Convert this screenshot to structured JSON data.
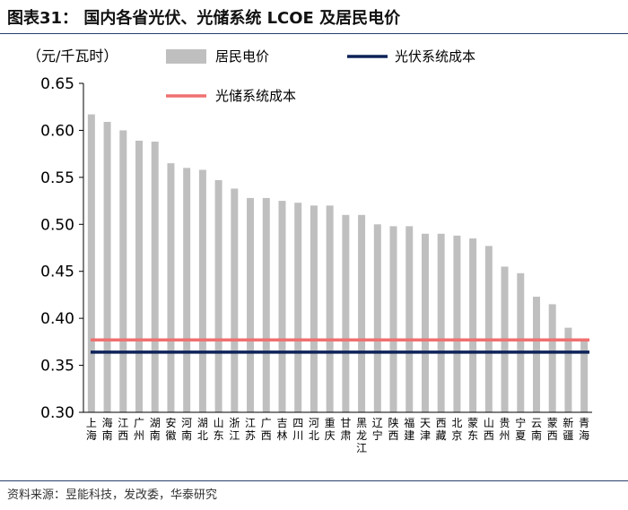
{
  "title": "图表31： 国内各省光伏、光储系统 LCOE 及居民电价",
  "source": "资料来源：昱能科技，发改委，华泰研究",
  "colors": {
    "bar": "#bfbfbf",
    "pv_line": "#0d2358",
    "storage_line": "#f07070",
    "axis": "#000000"
  },
  "chart_data": {
    "type": "bar",
    "unit_label": "（元/千瓦时）",
    "ylim": [
      0.3,
      0.65
    ],
    "yticks": [
      "0.30",
      "0.35",
      "0.40",
      "0.45",
      "0.50",
      "0.55",
      "0.60",
      "0.65"
    ],
    "categories": [
      "上海",
      "海南",
      "江西",
      "广州",
      "湖南",
      "安徽",
      "河南",
      "湖北",
      "山东",
      "浙江",
      "江苏",
      "广西",
      "吉林",
      "四川",
      "河北",
      "重庆",
      "甘肃",
      "黑龙江",
      "辽宁",
      "陕西",
      "福建",
      "天津",
      "西藏",
      "北京",
      "蒙东",
      "山西",
      "贵州",
      "宁夏",
      "云南",
      "蒙西",
      "新疆",
      "青海"
    ],
    "series": [
      {
        "name": "居民电价",
        "type": "bar",
        "values": [
          0.617,
          0.609,
          0.6,
          0.589,
          0.588,
          0.565,
          0.56,
          0.558,
          0.547,
          0.538,
          0.528,
          0.528,
          0.525,
          0.523,
          0.52,
          0.52,
          0.51,
          0.51,
          0.5,
          0.498,
          0.498,
          0.49,
          0.49,
          0.488,
          0.485,
          0.477,
          0.455,
          0.448,
          0.423,
          0.415,
          0.39,
          0.377
        ]
      },
      {
        "name": "光伏系统成本",
        "type": "line",
        "value": 0.364
      },
      {
        "name": "光储系统成本",
        "type": "line",
        "value": 0.377
      }
    ]
  }
}
